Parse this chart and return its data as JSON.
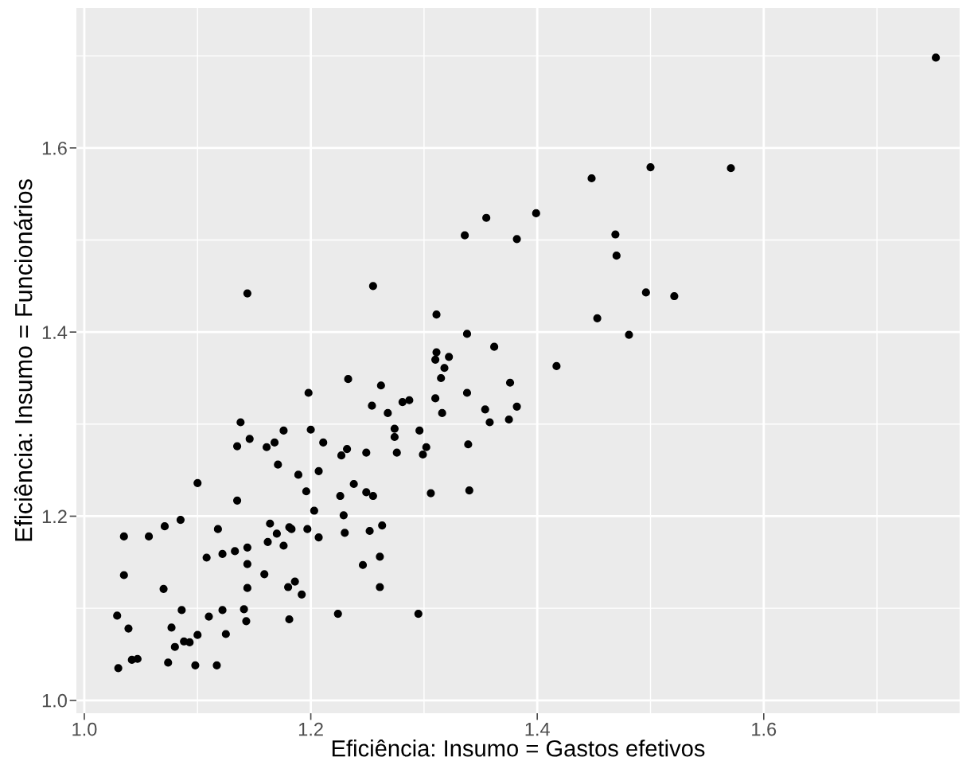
{
  "chart_data": {
    "type": "scatter",
    "xlabel": "Eficiência: Insumo = Gastos efetivos",
    "ylabel": "Eficiência: Insumo = Funcionários",
    "xlim": [
      0.993,
      1.773
    ],
    "ylim": [
      0.986,
      1.752
    ],
    "xticks": [
      {
        "value": 1.0,
        "label": "1.0"
      },
      {
        "value": 1.2,
        "label": "1.2"
      },
      {
        "value": 1.4,
        "label": "1.4"
      },
      {
        "value": 1.6,
        "label": "1.6"
      }
    ],
    "yticks": [
      {
        "value": 1.0,
        "label": "1.0"
      },
      {
        "value": 1.2,
        "label": "1.2"
      },
      {
        "value": 1.4,
        "label": "1.4"
      },
      {
        "value": 1.6,
        "label": "1.6"
      }
    ],
    "grid": true,
    "marker": "circle",
    "series": [
      {
        "color": "#000000",
        "x": [
          1.752,
          1.5,
          1.571,
          1.448,
          1.355,
          1.399,
          1.336,
          1.382,
          1.469,
          1.47,
          1.496,
          1.521,
          1.453,
          1.481,
          1.338,
          1.322,
          1.362,
          1.417,
          1.376,
          1.338,
          1.354,
          1.382,
          1.358,
          1.375,
          1.339,
          1.144,
          1.255,
          1.311,
          1.311,
          1.31,
          1.318,
          1.315,
          1.233,
          1.198,
          1.262,
          1.254,
          1.281,
          1.287,
          1.31,
          1.268,
          1.316,
          1.138,
          1.146,
          1.135,
          1.176,
          1.2,
          1.168,
          1.161,
          1.211,
          1.171,
          1.189,
          1.207,
          1.1,
          1.238,
          1.232,
          1.227,
          1.249,
          1.274,
          1.274,
          1.276,
          1.296,
          1.302,
          1.299,
          1.196,
          1.226,
          1.249,
          1.255,
          1.306,
          1.34,
          1.203,
          1.229,
          1.197,
          1.207,
          1.23,
          1.252,
          1.263,
          1.261,
          1.246,
          1.261,
          1.224,
          1.295,
          1.135,
          1.035,
          1.057,
          1.071,
          1.085,
          1.118,
          1.164,
          1.17,
          1.181,
          1.183,
          1.162,
          1.176,
          1.144,
          1.133,
          1.122,
          1.108,
          1.144,
          1.035,
          1.07,
          1.159,
          1.144,
          1.18,
          1.186,
          1.192,
          1.029,
          1.039,
          1.086,
          1.077,
          1.11,
          1.122,
          1.141,
          1.143,
          1.181,
          1.1,
          1.125,
          1.088,
          1.093,
          1.08,
          1.042,
          1.047,
          1.074,
          1.098,
          1.117,
          1.03
        ],
        "values": [
          1.698,
          1.579,
          1.578,
          1.567,
          1.524,
          1.529,
          1.505,
          1.501,
          1.506,
          1.483,
          1.443,
          1.439,
          1.415,
          1.397,
          1.398,
          1.373,
          1.384,
          1.363,
          1.345,
          1.334,
          1.316,
          1.319,
          1.302,
          1.305,
          1.278,
          1.442,
          1.45,
          1.419,
          1.378,
          1.37,
          1.361,
          1.35,
          1.349,
          1.334,
          1.342,
          1.32,
          1.324,
          1.326,
          1.328,
          1.312,
          1.312,
          1.302,
          1.284,
          1.276,
          1.293,
          1.294,
          1.28,
          1.275,
          1.28,
          1.256,
          1.245,
          1.249,
          1.236,
          1.235,
          1.273,
          1.266,
          1.269,
          1.295,
          1.286,
          1.269,
          1.293,
          1.275,
          1.267,
          1.227,
          1.222,
          1.226,
          1.222,
          1.225,
          1.228,
          1.206,
          1.201,
          1.186,
          1.177,
          1.182,
          1.184,
          1.19,
          1.156,
          1.147,
          1.123,
          1.094,
          1.094,
          1.217,
          1.178,
          1.178,
          1.189,
          1.196,
          1.186,
          1.192,
          1.181,
          1.188,
          1.186,
          1.172,
          1.168,
          1.166,
          1.162,
          1.159,
          1.155,
          1.148,
          1.136,
          1.121,
          1.137,
          1.122,
          1.123,
          1.129,
          1.115,
          1.092,
          1.078,
          1.098,
          1.079,
          1.091,
          1.098,
          1.099,
          1.086,
          1.088,
          1.071,
          1.072,
          1.064,
          1.063,
          1.058,
          1.044,
          1.045,
          1.041,
          1.038,
          1.038,
          1.035
        ]
      }
    ]
  }
}
